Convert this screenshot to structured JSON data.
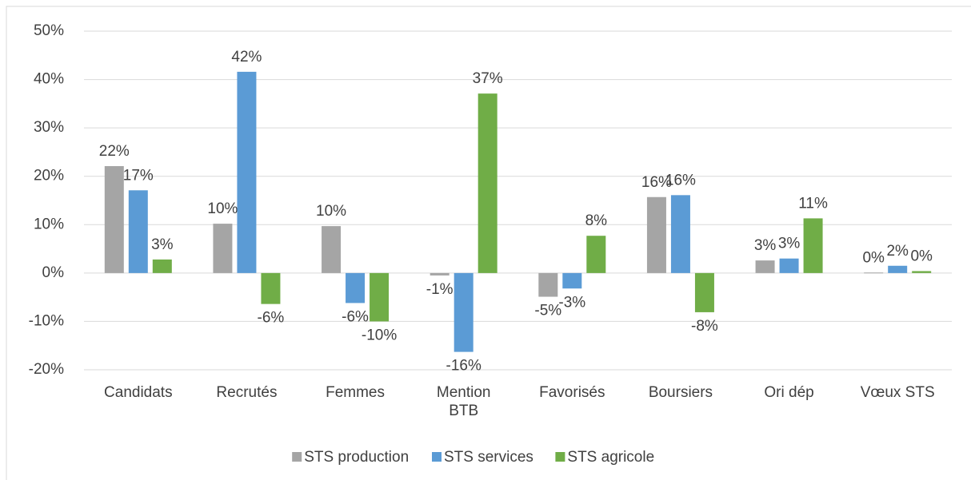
{
  "chart_data": {
    "type": "bar",
    "categories": [
      "Candidats",
      "Recrutés",
      "Femmes",
      "Mention BTB",
      "Favorisés",
      "Boursiers",
      "Ori dép",
      "Vœux STS"
    ],
    "series": [
      {
        "name": "STS production",
        "color": "#a5a5a5",
        "values": [
          22.1,
          10.2,
          9.7,
          -0.5,
          -4.9,
          15.7,
          2.6,
          0.1
        ],
        "value_labels": [
          "22%",
          "10%",
          "10%",
          "-1%",
          "-5%",
          "16%",
          "3%",
          "0%"
        ]
      },
      {
        "name": "STS services",
        "color": "#5b9bd5",
        "values": [
          17.1,
          41.6,
          -6.2,
          -16.3,
          -3.2,
          16.1,
          3.0,
          1.5
        ],
        "value_labels": [
          "17%",
          "42%",
          "-6%",
          "-16%",
          "-3%",
          "16%",
          "3%",
          "2%"
        ]
      },
      {
        "name": "STS agricole",
        "color": "#70ad47",
        "values": [
          2.8,
          -6.4,
          -10.0,
          37.1,
          7.7,
          -8.1,
          11.3,
          0.4
        ],
        "value_labels": [
          "3%",
          "-6%",
          "-10%",
          "37%",
          "8%",
          "-8%",
          "11%",
          "0%"
        ]
      }
    ],
    "ylim": [
      -20,
      50
    ],
    "yticks": [
      {
        "value": -20,
        "label": "-20%"
      },
      {
        "value": -10,
        "label": "-10%"
      },
      {
        "value": 0,
        "label": "0%"
      },
      {
        "value": 10,
        "label": "10%"
      },
      {
        "value": 20,
        "label": "20%"
      },
      {
        "value": 30,
        "label": "30%"
      },
      {
        "value": 40,
        "label": "40%"
      },
      {
        "value": 50,
        "label": "50%"
      }
    ],
    "grid": true,
    "legend": "bottom"
  }
}
